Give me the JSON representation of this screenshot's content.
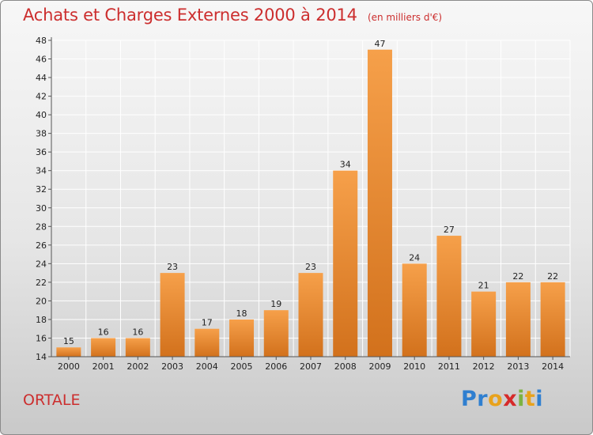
{
  "title": "Achats et Charges Externes 2000 à 2014",
  "subtitle": "(en milliers d'€)",
  "commune": "ORTALE",
  "logo": {
    "letters": [
      "P",
      "r",
      "o",
      "x",
      "i",
      "t",
      "i"
    ],
    "colors": [
      "#2f7fd0",
      "#2f7fd0",
      "#e8a21c",
      "#d62a2a",
      "#7cb342",
      "#e8a21c",
      "#2f7fd0"
    ]
  },
  "colors": {
    "accent": "#cc2e2e",
    "bar_top": "#f6a04a",
    "bar_bottom": "#d2711c",
    "grid": "#ffffff",
    "axis": "#555555"
  },
  "chart_data": {
    "type": "bar",
    "title": "Achats et Charges Externes 2000 à 2014",
    "subtitle": "(en milliers d'€)",
    "xlabel": "",
    "ylabel": "",
    "categories": [
      "2000",
      "2001",
      "2002",
      "2003",
      "2004",
      "2005",
      "2006",
      "2007",
      "2008",
      "2009",
      "2010",
      "2011",
      "2012",
      "2013",
      "2014"
    ],
    "values": [
      15,
      16,
      16,
      23,
      17,
      18,
      19,
      23,
      34,
      47,
      24,
      27,
      21,
      22,
      22
    ],
    "ylim": [
      14,
      48
    ],
    "yticks": [
      14,
      16,
      18,
      20,
      22,
      24,
      26,
      28,
      30,
      32,
      34,
      36,
      38,
      40,
      42,
      44,
      46,
      48
    ],
    "grid": true,
    "data_labels": true
  }
}
